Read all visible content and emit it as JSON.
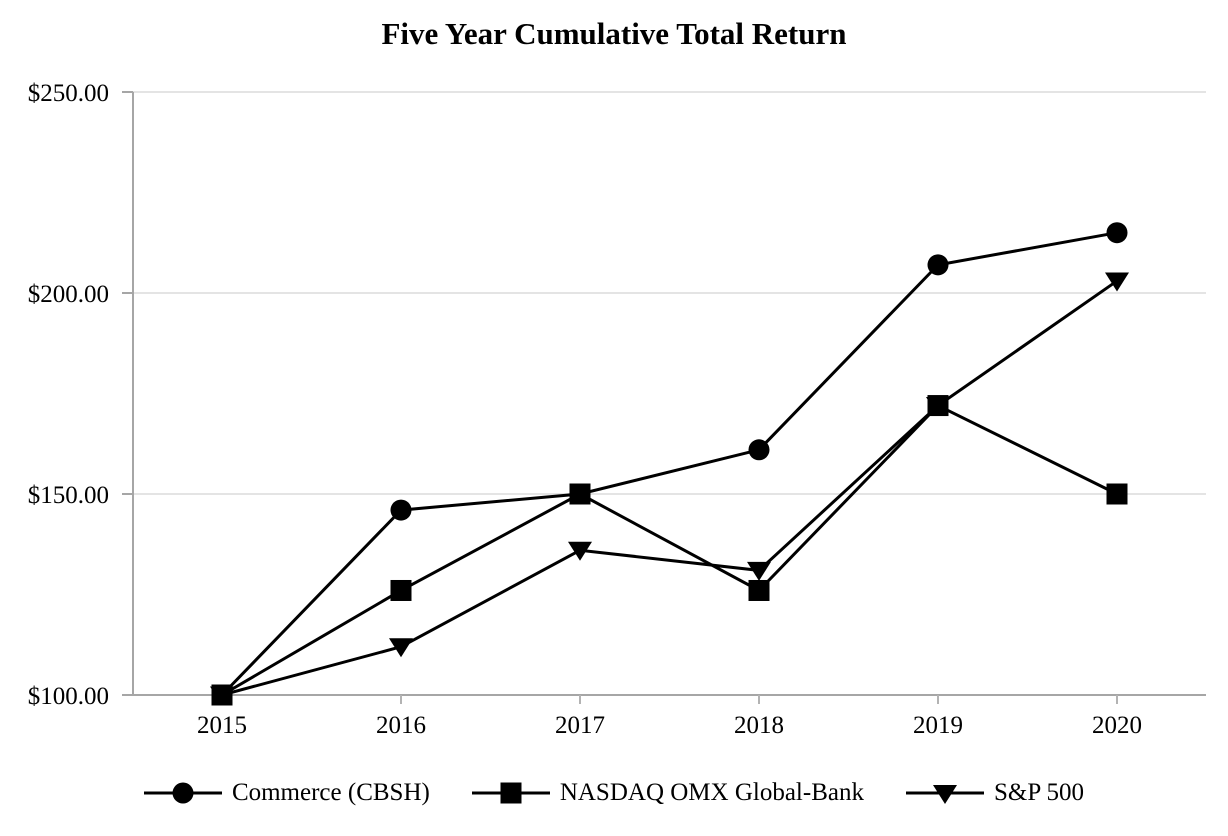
{
  "title": "Five Year Cumulative Total Return",
  "colors": {
    "background": "#ffffff",
    "series": "#000000",
    "axis": "#a6a6a6",
    "gridline": "#e4e4e4",
    "tick": "#b3b3b3",
    "text": "#000000"
  },
  "chart_data": {
    "type": "line",
    "title": "Five Year Cumulative Total Return",
    "x": [
      2015,
      2016,
      2017,
      2018,
      2019,
      2020
    ],
    "xtick_labels": [
      "2015",
      "2016",
      "2017",
      "2018",
      "2019",
      "2020"
    ],
    "ylim": [
      100,
      250
    ],
    "ytick_step": 50,
    "ytick_labels": [
      "$100.00",
      "$150.00",
      "$200.00",
      "$250.00"
    ],
    "grid": "horizontal",
    "legend_position": "bottom",
    "series": [
      {
        "name": "Commerce (CBSH)",
        "marker": "circle",
        "values": [
          100,
          146,
          150,
          161,
          207,
          215
        ]
      },
      {
        "name": "NASDAQ OMX Global-Bank",
        "marker": "square",
        "values": [
          100,
          126,
          150,
          126,
          172,
          150
        ]
      },
      {
        "name": "S&P 500",
        "marker": "triangle-down",
        "values": [
          100,
          112,
          136,
          131,
          172,
          203
        ]
      }
    ]
  }
}
